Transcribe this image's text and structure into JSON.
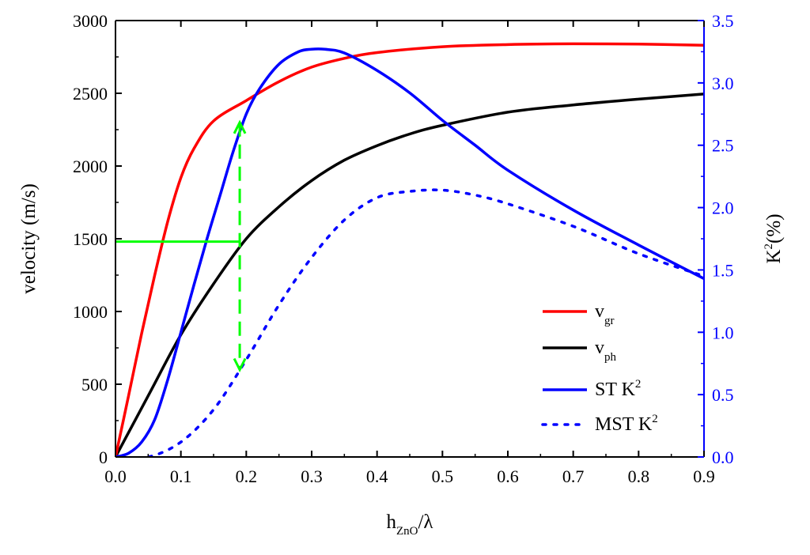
{
  "chart_data": {
    "type": "line",
    "xlabel": {
      "main": "h",
      "sub": "ZnO",
      "tail": "/λ"
    },
    "ylabel": "velocity (m/s)",
    "y2label": {
      "main": "K",
      "sup": "2",
      "tail": "(%)"
    },
    "xlim": [
      0,
      0.9
    ],
    "ylim": [
      0,
      3000
    ],
    "y2lim": [
      0,
      3.5
    ],
    "xticks": [
      "0.0",
      "0.1",
      "0.2",
      "0.3",
      "0.4",
      "0.5",
      "0.6",
      "0.7",
      "0.8",
      "0.9"
    ],
    "yticks": [
      "0",
      "500",
      "1000",
      "1500",
      "2000",
      "2500",
      "3000"
    ],
    "y2ticks": [
      "0.0",
      "0.5",
      "1.0",
      "1.5",
      "2.0",
      "2.5",
      "3.0",
      "3.5"
    ],
    "series": [
      {
        "name": "v_gr",
        "legend_main": "v",
        "legend_sub": "gr",
        "axis": "left",
        "color": "#ff0000",
        "style": "solid",
        "x": [
          0,
          0.02,
          0.04,
          0.06,
          0.08,
          0.1,
          0.12,
          0.15,
          0.2,
          0.25,
          0.3,
          0.35,
          0.4,
          0.5,
          0.6,
          0.7,
          0.8,
          0.9
        ],
        "y": [
          0,
          420,
          850,
          1250,
          1620,
          1920,
          2120,
          2310,
          2450,
          2580,
          2680,
          2740,
          2780,
          2820,
          2835,
          2840,
          2838,
          2830
        ]
      },
      {
        "name": "v_ph",
        "legend_main": "v",
        "legend_sub": "ph",
        "axis": "left",
        "color": "#000000",
        "style": "solid",
        "x": [
          0,
          0.05,
          0.1,
          0.15,
          0.2,
          0.25,
          0.3,
          0.35,
          0.4,
          0.45,
          0.5,
          0.6,
          0.7,
          0.8,
          0.9
        ],
        "y": [
          0,
          420,
          840,
          1190,
          1500,
          1720,
          1900,
          2040,
          2140,
          2220,
          2280,
          2370,
          2420,
          2460,
          2495
        ]
      },
      {
        "name": "ST K2",
        "legend_main": "ST K",
        "legend_sup": "2",
        "axis": "right",
        "color": "#0000ff",
        "style": "solid",
        "x": [
          0,
          0.02,
          0.04,
          0.06,
          0.08,
          0.1,
          0.12,
          0.14,
          0.16,
          0.18,
          0.2,
          0.22,
          0.25,
          0.28,
          0.3,
          0.32,
          0.35,
          0.4,
          0.45,
          0.5,
          0.55,
          0.6,
          0.7,
          0.8,
          0.9
        ],
        "y": [
          0,
          0.03,
          0.12,
          0.3,
          0.62,
          1.0,
          1.38,
          1.75,
          2.1,
          2.45,
          2.75,
          2.95,
          3.15,
          3.25,
          3.27,
          3.27,
          3.24,
          3.1,
          2.92,
          2.7,
          2.5,
          2.3,
          1.98,
          1.7,
          1.43
        ]
      },
      {
        "name": "MST K2",
        "legend_main": "MST K",
        "legend_sup": "2",
        "axis": "right",
        "color": "#0000ff",
        "style": "dotted",
        "x": [
          0,
          0.05,
          0.1,
          0.15,
          0.2,
          0.25,
          0.3,
          0.35,
          0.4,
          0.45,
          0.5,
          0.55,
          0.6,
          0.7,
          0.8,
          0.9
        ],
        "y": [
          0,
          0,
          0.12,
          0.38,
          0.78,
          1.22,
          1.6,
          1.9,
          2.08,
          2.13,
          2.14,
          2.1,
          2.03,
          1.85,
          1.63,
          1.45
        ]
      }
    ],
    "annotations": [
      {
        "type": "hline",
        "color": "#00ff00",
        "style": "solid",
        "x_from": 0,
        "x_to": 0.19,
        "y": 1480
      },
      {
        "type": "arrow",
        "color": "#00ff00",
        "style": "dashed",
        "x": 0.19,
        "y_from": 2300,
        "y_to": 600
      }
    ],
    "legend": "bottom-right"
  }
}
